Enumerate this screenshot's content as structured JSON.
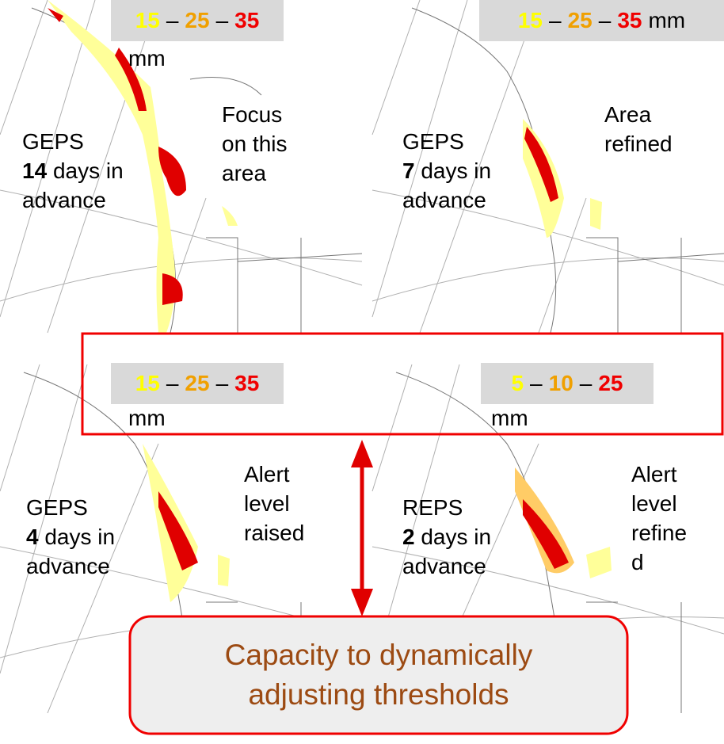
{
  "panels": [
    {
      "legend": {
        "values": [
          "15",
          "25",
          "35"
        ],
        "separator": "–",
        "unit": "mm"
      },
      "model": "GEPS",
      "lead_number": "14",
      "lead_lines": [
        "days in",
        "advance"
      ],
      "note_lines": [
        "Focus",
        "on this",
        "area"
      ]
    },
    {
      "legend": {
        "values": [
          "15",
          "25",
          "35"
        ],
        "separator": "–",
        "unit": "mm"
      },
      "model": "GEPS",
      "lead_number": "7",
      "lead_lines": [
        "days in",
        "advance"
      ],
      "note_lines": [
        "Area",
        "refined"
      ]
    },
    {
      "legend": {
        "values": [
          "15",
          "25",
          "35"
        ],
        "separator": "–",
        "unit": "mm"
      },
      "model": "GEPS",
      "lead_number": "4",
      "lead_lines": [
        "days in",
        "advance"
      ],
      "note_lines": [
        "Alert",
        "level",
        "raised"
      ]
    },
    {
      "legend": {
        "values": [
          "5",
          "10",
          "25"
        ],
        "separator": "–",
        "unit": "mm"
      },
      "model": "REPS",
      "lead_number": "2",
      "lead_lines": [
        "days in",
        "advance"
      ],
      "note_lines": [
        "Alert",
        "level",
        "refine",
        "d"
      ]
    }
  ],
  "callout": {
    "lines": [
      "Capacity to dynamically",
      "adjusting thresholds"
    ]
  }
}
